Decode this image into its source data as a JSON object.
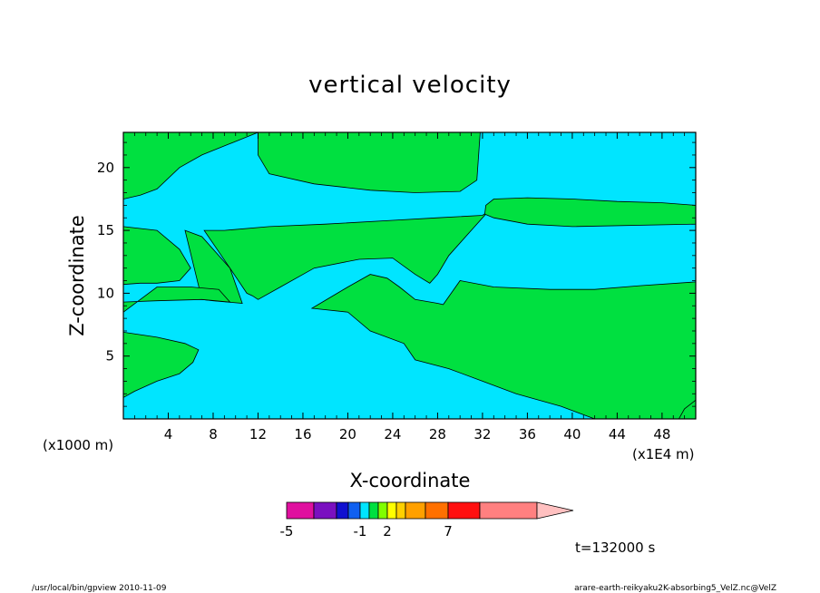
{
  "chart_data": {
    "type": "heatmap",
    "title": "vertical velocity",
    "xlabel": "X-coordinate",
    "ylabel": "Z-coordinate",
    "x_unit_label": "(x1E4 m)",
    "y_unit_label": "(x1000 m)",
    "xlim": [
      0,
      51
    ],
    "ylim": [
      0,
      22.8
    ],
    "x_ticks": [
      "4",
      "8",
      "12",
      "16",
      "20",
      "24",
      "28",
      "32",
      "36",
      "40",
      "44",
      "48"
    ],
    "x_tick_values": [
      4,
      8,
      12,
      16,
      20,
      24,
      28,
      32,
      36,
      40,
      44,
      48
    ],
    "y_ticks": [
      "5",
      "10",
      "15",
      "20"
    ],
    "y_tick_values": [
      5,
      10,
      15,
      20
    ],
    "time_label": "t=132000 s",
    "colorbar": {
      "levels": [
        -5,
        -4,
        -3,
        -2,
        -1,
        0,
        1,
        2,
        3,
        4,
        5,
        7,
        9,
        12
      ],
      "colors": [
        "#e0109f",
        "#7a10c0",
        "#1010d0",
        "#1060f0",
        "#00e5ff",
        "#00e040",
        "#80ff00",
        "#ffff00",
        "#ffd000",
        "#ffa000",
        "#ff7000",
        "#ff1010",
        "#ff8080",
        "#ffc0c0"
      ],
      "tick_labels": [
        "-5",
        "-1",
        "2",
        "7"
      ],
      "tick_values": [
        -5,
        -1,
        2,
        7
      ]
    },
    "regions": [
      {
        "name": "positive",
        "color": "#00e040",
        "polygons": [
          [
            [
              0,
              17.5
            ],
            [
              1.5,
              17.8
            ],
            [
              3,
              18.3
            ],
            [
              5,
              20
            ],
            [
              7,
              21
            ],
            [
              12,
              22.8
            ],
            [
              0,
              22.8
            ]
          ],
          [
            [
              12,
              22.8
            ],
            [
              12,
              21
            ],
            [
              13,
              19.5
            ],
            [
              17,
              18.7
            ],
            [
              22,
              18.2
            ],
            [
              26,
              18
            ],
            [
              30,
              18.1
            ],
            [
              31.5,
              19
            ],
            [
              31.8,
              22.8
            ]
          ],
          [
            [
              0,
              15.3
            ],
            [
              3,
              15
            ],
            [
              5,
              13.5
            ],
            [
              6,
              12
            ],
            [
              5,
              11
            ],
            [
              3,
              10.8
            ],
            [
              1.5,
              10.8
            ],
            [
              0,
              10.7
            ]
          ],
          [
            [
              7.2,
              15
            ],
            [
              9,
              15
            ],
            [
              13,
              15.3
            ],
            [
              18,
              15.5
            ],
            [
              24,
              15.8
            ],
            [
              28,
              16
            ],
            [
              32,
              16.2
            ],
            [
              32.5,
              16.5
            ],
            [
              31,
              15
            ],
            [
              29,
              13
            ],
            [
              28,
              11.5
            ],
            [
              27.3,
              10.8
            ],
            [
              26,
              11.5
            ],
            [
              24,
              12.8
            ],
            [
              21,
              12.7
            ],
            [
              17,
              12
            ],
            [
              14,
              10.5
            ],
            [
              12,
              9.5
            ],
            [
              11.5,
              9.8
            ],
            [
              11,
              10
            ],
            [
              9.5,
              12
            ]
          ],
          [
            [
              5.5,
              15
            ],
            [
              7,
              14.5
            ],
            [
              9.5,
              12
            ],
            [
              10.6,
              9.2
            ],
            [
              8,
              9.4
            ],
            [
              7,
              9.5
            ]
          ],
          [
            [
              0,
              9.3
            ],
            [
              3,
              9.4
            ],
            [
              7,
              9.5
            ],
            [
              9.5,
              9.3
            ],
            [
              8.5,
              10.3
            ],
            [
              6,
              10.5
            ],
            [
              3,
              10.5
            ],
            [
              0,
              8.5
            ]
          ],
          [
            [
              0,
              6.9
            ],
            [
              3,
              6.5
            ],
            [
              5.5,
              6
            ],
            [
              6.7,
              5.5
            ],
            [
              6.2,
              4.5
            ],
            [
              5,
              3.6
            ],
            [
              3,
              3
            ],
            [
              1,
              2.2
            ],
            [
              0,
              1.7
            ]
          ],
          [
            [
              16.8,
              8.8
            ],
            [
              20,
              10.5
            ],
            [
              22,
              11.5
            ],
            [
              23.5,
              11.2
            ],
            [
              24.6,
              10.5
            ],
            [
              26,
              9.5
            ],
            [
              28,
              9.2
            ],
            [
              28.5,
              9.1
            ],
            [
              30,
              11
            ],
            [
              33,
              10.5
            ],
            [
              38,
              10.3
            ],
            [
              42,
              10.3
            ],
            [
              46,
              10.6
            ],
            [
              51,
              10.9
            ],
            [
              51,
              1.5
            ],
            [
              49.5,
              0
            ],
            [
              42,
              0
            ],
            [
              39,
              1
            ],
            [
              35,
              2
            ],
            [
              32,
              3
            ],
            [
              29,
              4
            ],
            [
              26,
              4.7
            ],
            [
              25,
              6
            ],
            [
              22,
              7
            ],
            [
              20,
              8.5
            ]
          ],
          [
            [
              32.3,
              17
            ],
            [
              33,
              17.5
            ],
            [
              36,
              17.6
            ],
            [
              40,
              17.5
            ],
            [
              44,
              17.3
            ],
            [
              48,
              17.2
            ],
            [
              51,
              17
            ],
            [
              51,
              15.5
            ],
            [
              40,
              15.3
            ],
            [
              36,
              15.5
            ],
            [
              33,
              16
            ],
            [
              32.2,
              16.3
            ]
          ],
          [
            [
              49.5,
              0
            ],
            [
              51,
              0
            ],
            [
              51,
              1.5
            ],
            [
              50,
              0.8
            ]
          ]
        ]
      },
      {
        "name": "negative",
        "color": "#00e5ff",
        "polygons": [
          [
            [
              0,
              0
            ],
            [
              51,
              0
            ],
            [
              51,
              22.8
            ],
            [
              0,
              22.8
            ]
          ]
        ]
      }
    ]
  },
  "footer": {
    "left": "/usr/local/bin/gpview  2010-11-09",
    "right": "arare-earth-reikyaku2K-absorbing5_VelZ.nc@VelZ"
  }
}
